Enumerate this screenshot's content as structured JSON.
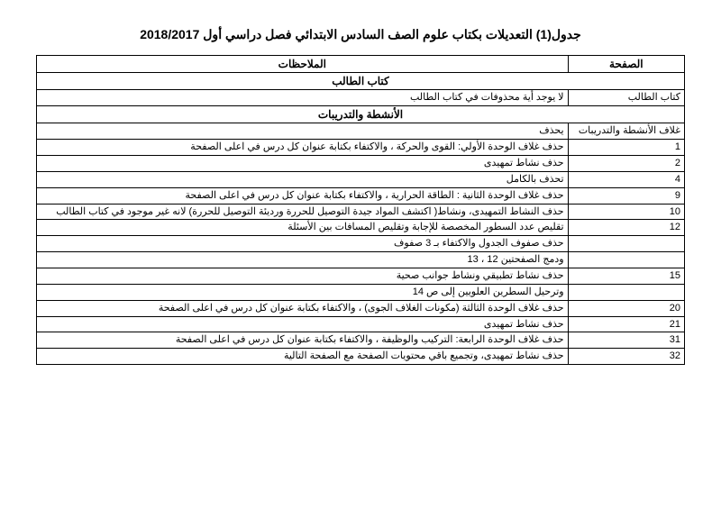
{
  "title": "جدول(1)  التعديلات بكتاب علوم الصف السادس الابتدائي فصل دراسي أول 2018/2017",
  "headers": {
    "page": "الصفحة",
    "notes": "الملاحظات"
  },
  "sections": {
    "s1": "كتاب الطالب",
    "s2": "الأنشطة والتدريبات"
  },
  "rows": {
    "r1_page": "كتاب الطالب",
    "r1_note": "لا يوجد أية محذوفات في كتاب الطالب",
    "r2_page": "غلاف الأنشطة والتدريبات",
    "r2_note": "يحذف",
    "r3_page": "1",
    "r3_note": "حذف غلاف الوحدة الأولي: القوى والحركة ، والاكتفاء بكتابة عنوان كل درس في اعلى الصفحة",
    "r4_page": "2",
    "r4_note": "حذف نشاط تمهيدى",
    "r5_page": "4",
    "r5_note": "تحذف بالكامل",
    "r6_page": "9",
    "r6_note": "حذف غلاف الوحدة الثانية : الطاقة الحرارية ، والاكتفاء بكتابة عنوان كل درس في اعلى الصفحة",
    "r7_page": "10",
    "r7_note": "حذف النشاط التمهيدى، ونشاط( اكتشف المواد جيدة التوصيل للحررة ورديئة التوصيل للحررة) لانه غير موجود في كتاب الطالب",
    "r8_page": "12",
    "r8_note": "تقليص عدد السطور المخصصة للإجابة وتقليص المسافات بين الأسئلة",
    "r9_page": "",
    "r9_note": "حذف صفوف الجدول والاكتفاء بـ 3 صفوف",
    "r10_page": "",
    "r10_note": "ودمج الصفحتين 12 ، 13",
    "r11_page": "15",
    "r11_note": "حذف نشاط تطبيقي ونشاط جوانب صحية",
    "r12_page": "",
    "r12_note": "وترحيل السطرين العلويين إلى ص 14",
    "r13_page": "20",
    "r13_note": "حذف غلاف الوحدة الثالثة (مكونات الغلاف الجوى) ، والاكتفاء بكتابة عنوان كل درس في اعلى الصفحة",
    "r14_page": "21",
    "r14_note": "حذف نشاط تمهيدى",
    "r15_page": "31",
    "r15_note": "حذف غلاف الوحدة الرابعة: التركيب والوظيفة ، والاكتفاء بكتابة عنوان كل درس في اعلى الصفحة",
    "r16_page": "32",
    "r16_note": "حذف نشاط تمهيدى، وتجميع باقي محتويات الصفحة مع الصفحة التالية"
  }
}
